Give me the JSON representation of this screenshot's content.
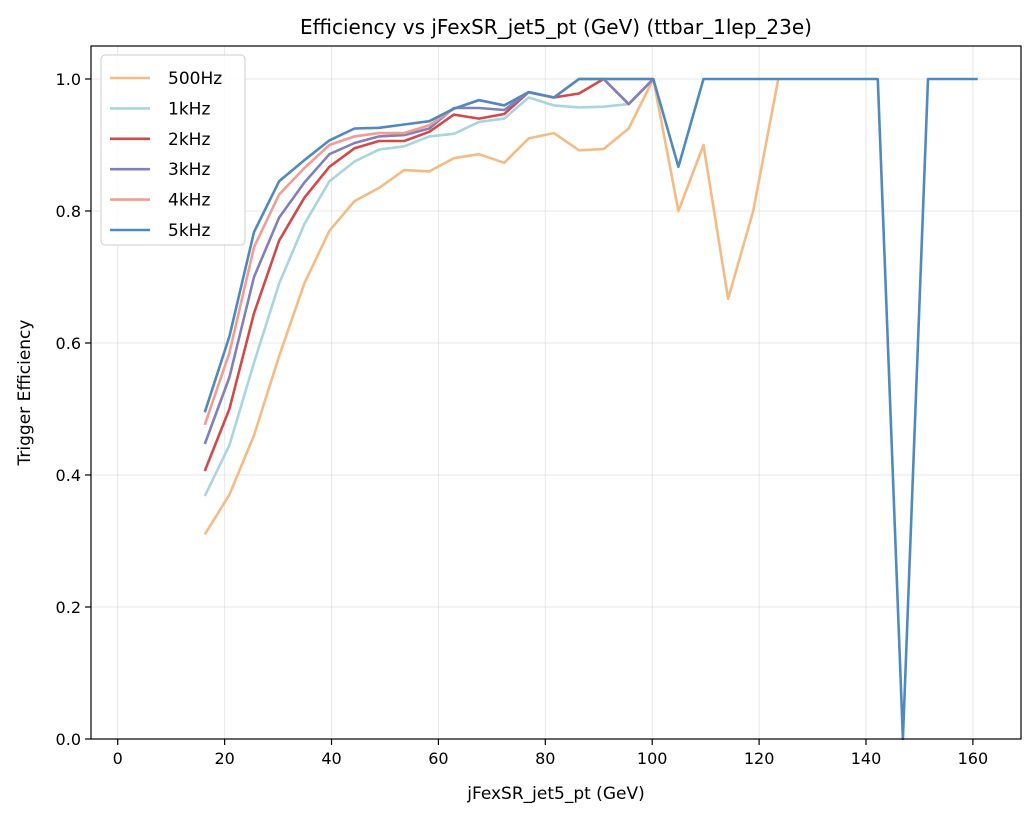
{
  "chart_data": {
    "type": "line",
    "title": "Efficiency vs jFexSR_jet5_pt (GeV) (ttbar_1lep_23e)",
    "xlabel": "jFexSR_jet5_pt (GeV)",
    "ylabel": "Trigger Efficiency",
    "xlim": [
      -5,
      169
    ],
    "ylim": [
      0,
      1.05
    ],
    "xticks": [
      0,
      20,
      40,
      60,
      80,
      100,
      120,
      140,
      160
    ],
    "yticks": [
      0.0,
      0.2,
      0.4,
      0.6,
      0.8,
      1.0
    ],
    "xtick_labels": [
      "0",
      "20",
      "40",
      "60",
      "80",
      "100",
      "120",
      "140",
      "160"
    ],
    "ytick_labels": [
      "0.0",
      "0.2",
      "0.4",
      "0.6",
      "0.8",
      "1.0"
    ],
    "grid": true,
    "legend_position": "top-left",
    "series": [
      {
        "name": "500Hz",
        "color": "#f4bb84",
        "x": [
          16.3,
          20.9,
          25.5,
          30.2,
          34.9,
          39.6,
          44.3,
          48.9,
          53.6,
          58.3,
          62.9,
          67.6,
          72.3,
          76.9,
          81.6,
          86.3,
          90.9,
          95.6,
          100.2,
          104.9,
          109.6,
          114.2,
          118.9,
          123.6
        ],
        "y": [
          0.31,
          0.37,
          0.46,
          0.58,
          0.69,
          0.77,
          0.815,
          0.835,
          0.862,
          0.86,
          0.88,
          0.886,
          0.873,
          0.91,
          0.918,
          0.892,
          0.894,
          0.925,
          1.0,
          0.8,
          0.9,
          0.667,
          0.8,
          1.0
        ]
      },
      {
        "name": "1kHz",
        "color": "#a9d4e0",
        "x": [
          16.3,
          20.9,
          25.5,
          30.2,
          34.9,
          39.6,
          44.3,
          48.9,
          53.6,
          58.3,
          62.9,
          67.6,
          72.3,
          76.9,
          81.6,
          86.3,
          90.9,
          95.6,
          100.2
        ],
        "y": [
          0.368,
          0.445,
          0.57,
          0.69,
          0.78,
          0.845,
          0.875,
          0.893,
          0.898,
          0.913,
          0.917,
          0.935,
          0.94,
          0.972,
          0.96,
          0.957,
          0.958,
          0.962,
          1.0
        ]
      },
      {
        "name": "2kHz",
        "color": "#d04a4a",
        "x": [
          16.3,
          20.9,
          25.5,
          30.2,
          34.9,
          39.6,
          44.3,
          48.9,
          53.6,
          58.3,
          62.9,
          67.6,
          72.3,
          76.9,
          81.6,
          86.3,
          90.9,
          95.6,
          100.2
        ],
        "y": [
          0.406,
          0.5,
          0.645,
          0.755,
          0.82,
          0.867,
          0.895,
          0.906,
          0.906,
          0.92,
          0.946,
          0.94,
          0.947,
          0.98,
          0.972,
          0.978,
          1.0,
          0.962,
          1.0
        ]
      },
      {
        "name": "3kHz",
        "color": "#8080bb",
        "x": [
          16.3,
          20.9,
          25.5,
          30.2,
          34.9,
          39.6,
          44.3,
          48.9,
          53.6,
          58.3,
          62.9,
          67.6,
          72.3,
          76.9,
          81.6,
          86.3,
          90.9,
          95.6,
          100.2
        ],
        "y": [
          0.447,
          0.548,
          0.7,
          0.79,
          0.843,
          0.886,
          0.903,
          0.913,
          0.915,
          0.925,
          0.956,
          0.956,
          0.953,
          0.98,
          0.972,
          1.0,
          1.0,
          0.962,
          1.0
        ]
      },
      {
        "name": "4kHz",
        "color": "#f29c92",
        "x": [
          16.3,
          20.9,
          25.5,
          30.2,
          34.9,
          39.6,
          44.3,
          48.9,
          53.6,
          58.3,
          62.9,
          67.6,
          72.3,
          76.9,
          81.6,
          86.3,
          90.9,
          95.6,
          100.2
        ],
        "y": [
          0.476,
          0.585,
          0.745,
          0.825,
          0.865,
          0.9,
          0.913,
          0.918,
          0.918,
          0.93,
          0.955,
          0.968,
          0.96,
          0.98,
          0.972,
          1.0,
          1.0,
          1.0,
          1.0
        ]
      },
      {
        "name": "5kHz",
        "color": "#4f8abf",
        "x": [
          16.3,
          20.9,
          25.5,
          30.2,
          34.9,
          39.6,
          44.3,
          48.9,
          53.6,
          58.3,
          62.9,
          67.6,
          72.3,
          76.9,
          81.6,
          86.3,
          90.9,
          95.6,
          100.2,
          104.9,
          109.6,
          114.2,
          118.9,
          123.6,
          128.2,
          132.9,
          137.6,
          142.2,
          146.9,
          151.6,
          156.2,
          160.9
        ],
        "y": [
          0.495,
          0.61,
          0.768,
          0.845,
          0.877,
          0.907,
          0.925,
          0.926,
          0.931,
          0.936,
          0.955,
          0.968,
          0.96,
          0.98,
          0.972,
          1.0,
          1.0,
          1.0,
          1.0,
          0.867,
          1.0,
          1.0,
          1.0,
          1.0,
          1.0,
          1.0,
          1.0,
          1.0,
          0.0,
          1.0,
          1.0,
          1.0
        ]
      }
    ]
  }
}
